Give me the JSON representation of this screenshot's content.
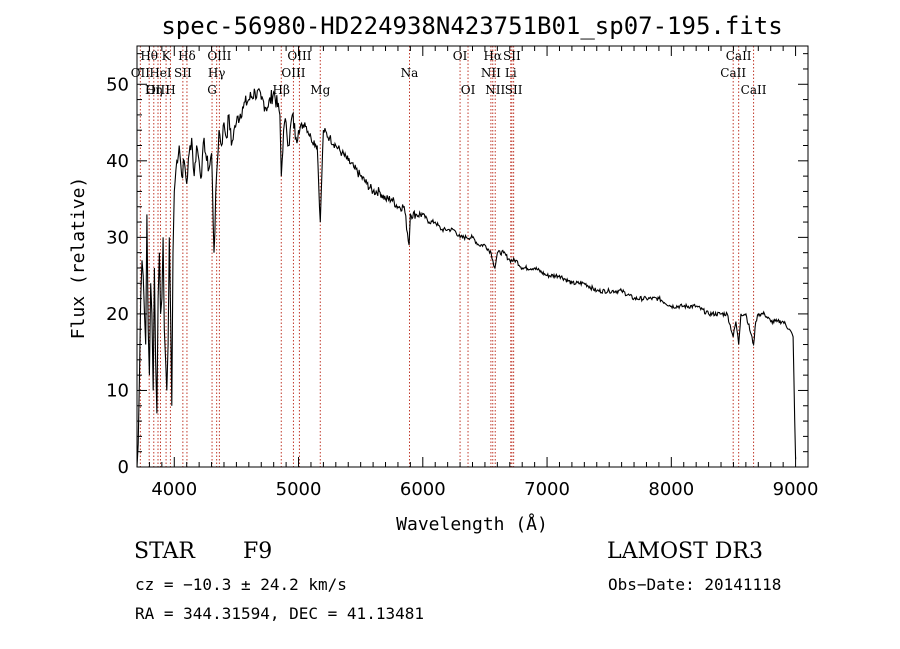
{
  "chart_data": {
    "type": "line",
    "title": "spec-56980-HD224938N423751B01_sp07-195.fits",
    "xlabel": "Wavelength (Å)",
    "ylabel": "Flux (relative)",
    "xlim": [
      3700,
      9100
    ],
    "ylim": [
      0,
      55
    ],
    "xticks": [
      4000,
      5000,
      6000,
      7000,
      8000,
      9000
    ],
    "yticks": [
      0,
      10,
      20,
      30,
      40,
      50
    ],
    "grid": false,
    "series": [
      {
        "name": "flux",
        "x": [
          3700,
          3710,
          3720,
          3730,
          3740,
          3750,
          3760,
          3770,
          3780,
          3790,
          3800,
          3810,
          3820,
          3830,
          3840,
          3850,
          3860,
          3870,
          3880,
          3890,
          3900,
          3910,
          3920,
          3930,
          3940,
          3950,
          3960,
          3970,
          3980,
          3990,
          4000,
          4020,
          4040,
          4060,
          4080,
          4100,
          4120,
          4140,
          4160,
          4180,
          4200,
          4220,
          4240,
          4260,
          4280,
          4300,
          4320,
          4340,
          4360,
          4380,
          4400,
          4420,
          4440,
          4460,
          4480,
          4500,
          4550,
          4600,
          4650,
          4700,
          4750,
          4800,
          4850,
          4861,
          4880,
          4900,
          4920,
          4950,
          4980,
          5000,
          5050,
          5100,
          5150,
          5175,
          5200,
          5250,
          5300,
          5350,
          5400,
          5450,
          5500,
          5550,
          5600,
          5650,
          5700,
          5750,
          5800,
          5850,
          5890,
          5900,
          5950,
          6000,
          6050,
          6100,
          6150,
          6200,
          6250,
          6300,
          6350,
          6400,
          6450,
          6500,
          6550,
          6563,
          6580,
          6600,
          6650,
          6700,
          6750,
          6800,
          6900,
          7000,
          7100,
          7200,
          7300,
          7400,
          7500,
          7600,
          7700,
          7800,
          7900,
          8000,
          8100,
          8200,
          8300,
          8400,
          8450,
          8498,
          8520,
          8542,
          8560,
          8600,
          8662,
          8680,
          8700,
          8750,
          8800,
          8850,
          8900,
          8950,
          8980,
          9000
        ],
        "y": [
          0,
          3,
          12,
          22,
          27,
          25,
          20,
          16,
          33,
          18,
          12,
          24,
          20,
          10,
          26,
          14,
          7,
          22,
          28,
          20,
          22,
          30,
          18,
          14,
          10,
          16,
          30,
          20,
          8,
          28,
          36,
          40,
          42,
          38,
          40,
          37,
          41,
          43,
          38,
          42,
          40,
          38,
          43,
          40,
          39,
          41,
          28,
          38,
          44,
          42,
          45,
          43,
          46,
          42,
          44,
          45,
          47,
          48,
          49,
          48,
          47,
          49,
          46,
          38,
          44,
          45,
          42,
          46,
          43,
          44,
          45,
          43,
          42,
          32,
          44,
          43,
          42,
          41,
          40,
          39,
          38,
          37,
          36,
          36,
          35,
          35,
          34,
          34,
          29,
          33,
          33,
          33,
          32,
          32,
          31,
          31,
          31,
          30,
          30,
          30,
          29,
          29,
          28,
          27,
          26,
          28,
          28,
          27,
          27,
          26,
          26,
          25,
          25,
          24,
          24,
          23,
          23,
          23,
          22,
          22,
          22,
          21,
          21,
          21,
          20,
          20,
          20,
          17,
          19,
          16,
          20,
          20,
          16,
          19,
          20,
          20,
          19,
          19,
          19,
          18,
          17,
          1
        ]
      }
    ],
    "annotations": [
      {
        "label": "Hθ",
        "x": 3798,
        "row": 1
      },
      {
        "label": "OII",
        "x": 3727,
        "row": 2
      },
      {
        "label": "K",
        "x": 3934,
        "row": 1
      },
      {
        "label": "Hδ",
        "x": 4102,
        "row": 1
      },
      {
        "label": "HeI",
        "x": 3889,
        "row": 2
      },
      {
        "label": "SII",
        "x": 4069,
        "row": 2
      },
      {
        "label": "OIII",
        "x": 3869,
        "row": 3
      },
      {
        "label": "Hη",
        "x": 3835,
        "row": 3
      },
      {
        "label": "H",
        "x": 3969,
        "row": 3
      },
      {
        "label": "OIII",
        "x": 4363,
        "row": 1
      },
      {
        "label": "Hγ",
        "x": 4341,
        "row": 2
      },
      {
        "label": "G",
        "x": 4304,
        "row": 3
      },
      {
        "label": "OIII",
        "x": 5007,
        "row": 1
      },
      {
        "label": "OIII",
        "x": 4959,
        "row": 2
      },
      {
        "label": "Hβ",
        "x": 4861,
        "row": 3
      },
      {
        "label": "Mg",
        "x": 5175,
        "row": 3
      },
      {
        "label": "Na",
        "x": 5893,
        "row": 2
      },
      {
        "label": "OI",
        "x": 6300,
        "row": 1
      },
      {
        "label": "OI",
        "x": 6364,
        "row": 3
      },
      {
        "label": "Hα",
        "x": 6563,
        "row": 1
      },
      {
        "label": "SII",
        "x": 6717,
        "row": 1
      },
      {
        "label": "NII",
        "x": 6548,
        "row": 2
      },
      {
        "label": "Li",
        "x": 6708,
        "row": 2
      },
      {
        "label": "NII",
        "x": 6583,
        "row": 3
      },
      {
        "label": "SII",
        "x": 6731,
        "row": 3
      },
      {
        "label": "CaII",
        "x": 8542,
        "row": 1
      },
      {
        "label": "CaII",
        "x": 8498,
        "row": 2
      },
      {
        "label": "CaII",
        "x": 8662,
        "row": 3
      }
    ]
  },
  "info": {
    "object_class": "STAR",
    "subclass": "F9",
    "survey": "LAMOST DR3",
    "cz": "cz = −10.3 ± 24.2 km/s",
    "obs_date": "Obs−Date: 20141118",
    "coords": "RA = 344.31594, DEC =  41.13481"
  }
}
